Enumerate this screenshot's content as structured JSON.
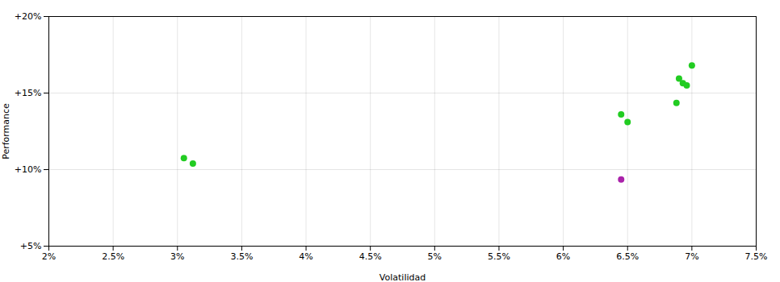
{
  "chart_data": {
    "type": "scatter",
    "xlabel": "Volatilidad",
    "ylabel": "Performance",
    "xlim": [
      0.02,
      0.075
    ],
    "ylim": [
      0.05,
      0.2
    ],
    "xticks": [
      {
        "value": 0.02,
        "label": "2%"
      },
      {
        "value": 0.025,
        "label": "2.5%"
      },
      {
        "value": 0.03,
        "label": "3%"
      },
      {
        "value": 0.035,
        "label": "3.5%"
      },
      {
        "value": 0.04,
        "label": "4%"
      },
      {
        "value": 0.045,
        "label": "4.5%"
      },
      {
        "value": 0.05,
        "label": "5%"
      },
      {
        "value": 0.055,
        "label": "5.5%"
      },
      {
        "value": 0.06,
        "label": "6%"
      },
      {
        "value": 0.065,
        "label": "6.5%"
      },
      {
        "value": 0.07,
        "label": "7%"
      },
      {
        "value": 0.075,
        "label": "7.5%"
      }
    ],
    "yticks": [
      {
        "value": 0.05,
        "label": "+5%"
      },
      {
        "value": 0.1,
        "label": "+10%"
      },
      {
        "value": 0.15,
        "label": "+15%"
      },
      {
        "value": 0.2,
        "label": "+20%"
      }
    ],
    "grid": true,
    "series": [
      {
        "color": "#22cc22",
        "x": [
          0.0305,
          0.0312,
          0.0645,
          0.065,
          0.0688,
          0.069,
          0.0693,
          0.0696,
          0.07
        ],
        "values": [
          0.1075,
          0.104,
          0.136,
          0.131,
          0.1435,
          0.1595,
          0.1565,
          0.155,
          0.168
        ]
      },
      {
        "color": "#aa22aa",
        "x": [
          0.0645
        ],
        "values": [
          0.0935
        ]
      }
    ]
  }
}
